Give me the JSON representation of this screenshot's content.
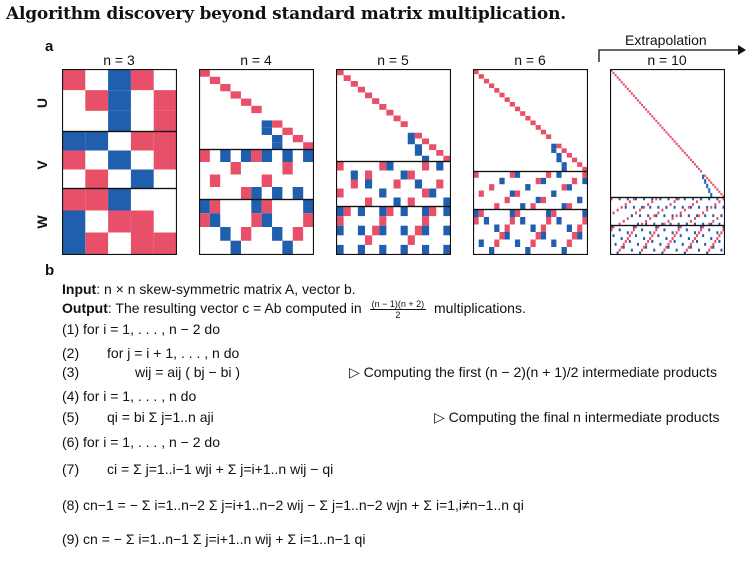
{
  "figure": {
    "title": "Algorithm discovery beyond standard matrix multiplication.",
    "panel_a_label": "a",
    "panel_b_label": "b",
    "extrapolation_label": "Extrapolation",
    "row_labels": [
      "U",
      "V",
      "W"
    ],
    "colors": {
      "red": "#e8506a",
      "blue": "#1f5fae",
      "border": "#111111"
    },
    "matrices": [
      {
        "n": "3",
        "label": "n = 3"
      },
      {
        "n": "4",
        "label": "n = 4"
      },
      {
        "n": "5",
        "label": "n = 5"
      },
      {
        "n": "6",
        "label": "n = 6"
      },
      {
        "n": "10",
        "label": "n = 10"
      }
    ]
  },
  "algorithm": {
    "input_label": "Input",
    "input_text": ": n × n skew-symmetric matrix A, vector b.",
    "output_label": "Output",
    "output_text_pre": ": The resulting vector c = Ab computed in",
    "output_frac_num": "(n − 1)(n + 2)",
    "output_frac_den": "2",
    "output_text_post": "multiplications.",
    "lines": [
      {
        "num": "(1)",
        "text": "for i = 1, . . . , n − 2 do"
      },
      {
        "num": "(2)",
        "text": "for j = i + 1, . . . , n do"
      },
      {
        "num": "(3)",
        "text": "wij = aij ( bj − bi )"
      },
      {
        "num": "(4)",
        "text": "for i = 1, . . . , n do"
      },
      {
        "num": "(5)",
        "text": "qi = bi Σ j=1..n aji"
      },
      {
        "num": "(6)",
        "text": "for i = 1, . . . , n − 2 do"
      },
      {
        "num": "(7)",
        "text": "ci = Σ j=1..i−1 wji + Σ j=i+1..n wij − qi"
      },
      {
        "num": "(8)",
        "text": "cn−1 = − Σ i=1..n−2 Σ j=i+1..n−2 wij − Σ j=1..n−2 wjn + Σ i=1,i≠n−1..n qi"
      },
      {
        "num": "(9)",
        "text": "cn = − Σ i=1..n−1 Σ j=i+1..n wij + Σ i=1..n−1 qi"
      }
    ],
    "comments": [
      "▷ Computing the first (n − 2)(n + 1)/2 intermediate products",
      "▷ Computing the final n intermediate products"
    ]
  }
}
